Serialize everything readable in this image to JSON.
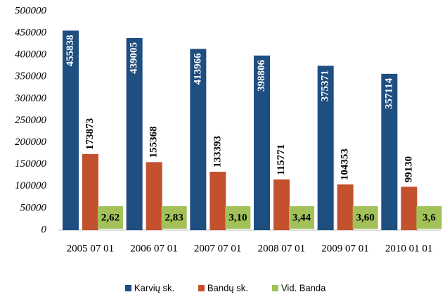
{
  "chart_data": {
    "type": "bar",
    "categories": [
      "2005 07 01",
      "2006 07 01",
      "2007 07 01",
      "2008 07 01",
      "2009 07 01",
      "2010 01 01"
    ],
    "series": [
      {
        "name": "Karvių sk.",
        "color": "#1f4e80",
        "values": [
          455838,
          439005,
          413966,
          398806,
          375371,
          357114
        ]
      },
      {
        "name": "Bandų sk.",
        "color": "#c4512e",
        "values": [
          173873,
          155368,
          133393,
          115771,
          104353,
          99130
        ]
      },
      {
        "name": "Vid. Banda",
        "color": "#a3c159",
        "values": [
          2.62,
          2.83,
          3.1,
          3.44,
          3.6,
          3.6
        ],
        "value_labels": [
          "2,62",
          "2,83",
          "3,10",
          "3,44",
          "3,60",
          "3,6"
        ]
      }
    ],
    "ylim": [
      0,
      500000
    ],
    "yticks": [
      0,
      50000,
      100000,
      150000,
      200000,
      250000,
      300000,
      350000,
      400000,
      450000,
      500000
    ],
    "grid": false,
    "legend": "bottom"
  }
}
